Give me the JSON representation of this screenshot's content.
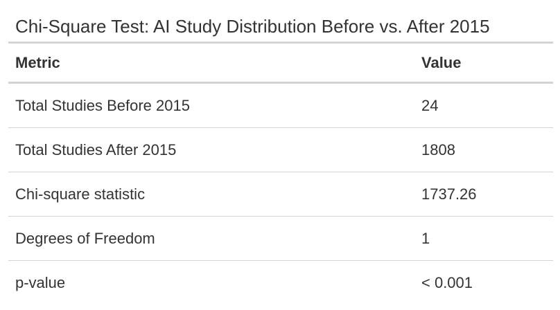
{
  "caption": "Chi-Square Test: AI Study Distribution Before vs. After 2015",
  "columns": [
    "Metric",
    "Value"
  ],
  "rows": [
    {
      "metric": "Total Studies Before 2015",
      "value": "24"
    },
    {
      "metric": "Total Studies After 2015",
      "value": "1808"
    },
    {
      "metric": "Chi-square statistic",
      "value": "1737.26"
    },
    {
      "metric": "Degrees of Freedom",
      "value": "1"
    },
    {
      "metric": "p-value",
      "value": "< 0.001"
    }
  ],
  "chart_data": {
    "type": "table",
    "title": "Chi-Square Test: AI Study Distribution Before vs. After 2015",
    "columns": [
      "Metric",
      "Value"
    ],
    "rows": [
      [
        "Total Studies Before 2015",
        "24"
      ],
      [
        "Total Studies After 2015",
        "1808"
      ],
      [
        "Chi-square statistic",
        "1737.26"
      ],
      [
        "Degrees of Freedom",
        "1"
      ],
      [
        "p-value",
        "< 0.001"
      ]
    ]
  }
}
